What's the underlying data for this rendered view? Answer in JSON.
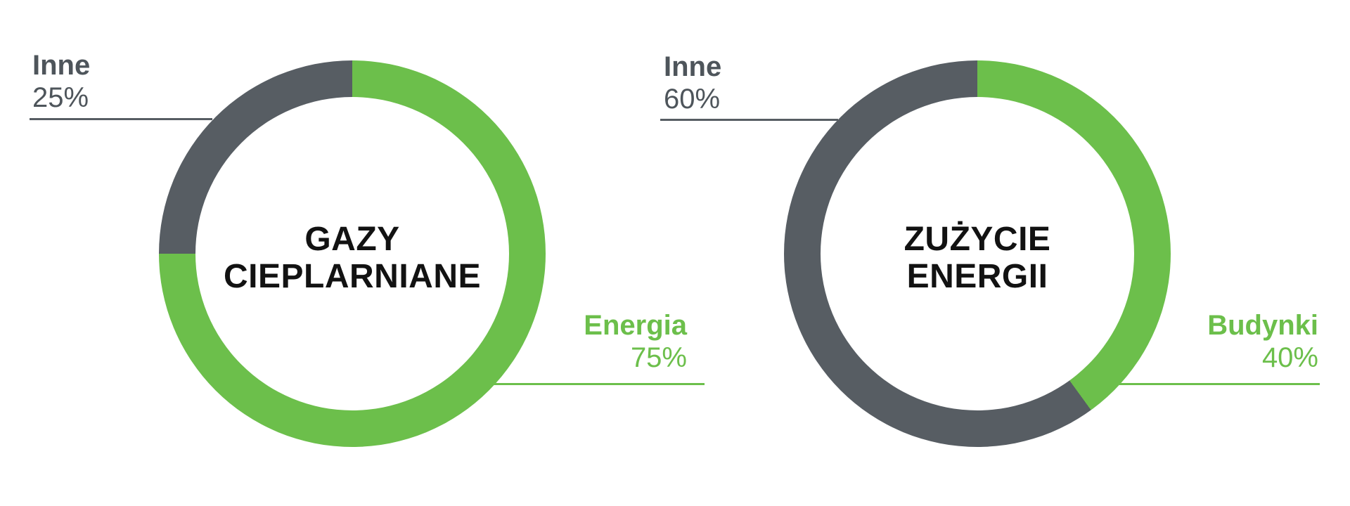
{
  "page": {
    "background": "#ffffff"
  },
  "colors": {
    "green": "#6cbf4b",
    "gray": "#575d63",
    "gray_text": "#4e555b",
    "title_text": "#121212"
  },
  "charts": [
    {
      "title_line1": "GAZY",
      "title_line2": "CIEPLARNIANE",
      "green_value": 75,
      "labels": {
        "gray": {
          "name": "Inne",
          "pct": "25%"
        },
        "green": {
          "name": "Energia",
          "pct": "75%"
        }
      }
    },
    {
      "title_line1": "ZUŻYCIE",
      "title_line2": "ENERGII",
      "green_value": 40,
      "labels": {
        "gray": {
          "name": "Inne",
          "pct": "60%"
        },
        "green": {
          "name": "Budynki",
          "pct": "40%"
        }
      }
    }
  ],
  "chart_data": [
    {
      "type": "pie",
      "subtype": "donut",
      "title": "GAZY CIEPLARNIANE",
      "center_label": "GAZY CIEPLARNIANE",
      "labels": [
        "Energia",
        "Inne"
      ],
      "values": [
        75,
        25
      ],
      "unit": "%",
      "colors": [
        "#6cbf4b",
        "#575d63"
      ],
      "start_angle_deg": 0,
      "direction": "clockwise",
      "legend_position": "outside-callouts"
    },
    {
      "type": "pie",
      "subtype": "donut",
      "title": "ZUŻYCIE ENERGII",
      "center_label": "ZUŻYCIE ENERGII",
      "labels": [
        "Budynki",
        "Inne"
      ],
      "values": [
        40,
        60
      ],
      "unit": "%",
      "colors": [
        "#6cbf4b",
        "#575d63"
      ],
      "start_angle_deg": 0,
      "direction": "clockwise",
      "legend_position": "outside-callouts"
    }
  ]
}
